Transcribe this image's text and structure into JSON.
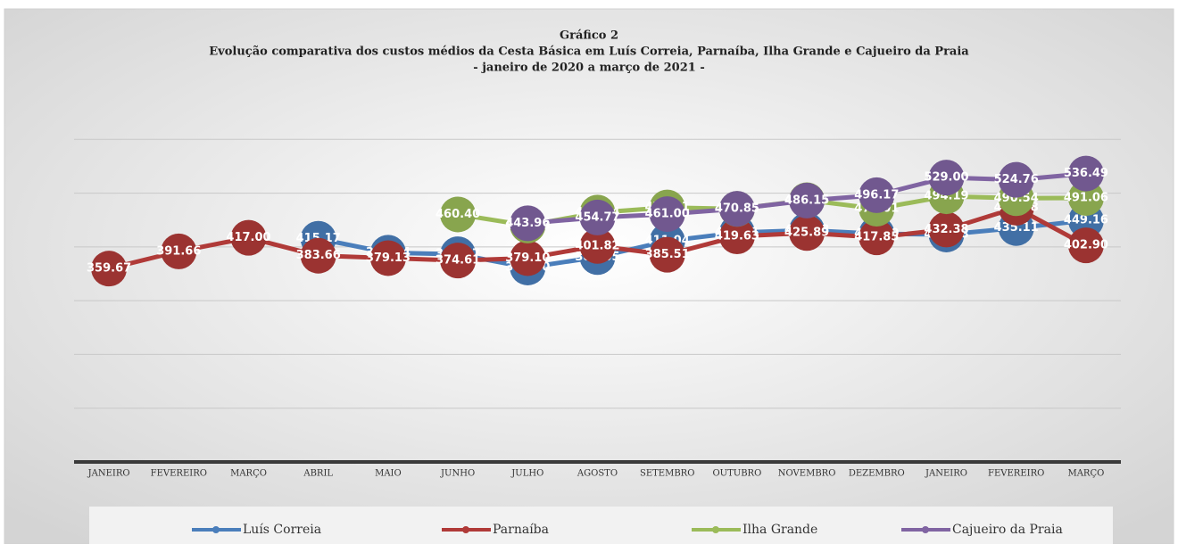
{
  "chart_data": {
    "type": "line",
    "title": "Gráfico 2",
    "subtitle": "Evolução comparativa dos custos médios da Cesta Básica em Luís Correia, Parnaíba, Ilha Grande e Cajueiro da Praia",
    "period": "- janeiro de 2020 a março de 2021 -",
    "categories": [
      "JANEIRO",
      "FEVEREIRO",
      "MARÇO",
      "ABRIL",
      "MAIO",
      "JUNHO",
      "JULHO",
      "AGOSTO",
      "SETEMBRO",
      "OUTUBRO",
      "NOVEMBRO",
      "DEZEMBRO",
      "JANEIRO",
      "FEVEREIRO",
      "MARÇO"
    ],
    "series": [
      {
        "name": "Luís Correia",
        "color": "#4a7ebb",
        "values": [
          null,
          null,
          null,
          415.17,
          389.14,
          386.27,
          361.7,
          381.05,
          411.04,
          426.61,
          431.08,
          424.5,
          423.08,
          435.11,
          449.16
        ],
        "value_labels": [
          null,
          null,
          null,
          "415.17",
          "389.14",
          "386.27",
          "361.70",
          "381.05",
          "411.04",
          "426.61",
          "431.08",
          "424.50",
          "423.08",
          "435.11",
          "449.16"
        ]
      },
      {
        "name": "Parnaíba",
        "color": "#b03a38",
        "values": [
          359.67,
          391.66,
          417.0,
          383.66,
          379.13,
          374.61,
          379.1,
          401.82,
          385.51,
          419.63,
          425.89,
          417.85,
          432.38,
          472.88,
          402.9
        ],
        "value_labels": [
          "359.67",
          "391.66",
          "417.00",
          "383.66",
          "379.13",
          "374.61",
          "379.10",
          "401.82",
          "385.51",
          "419.63",
          "425.89",
          "417.85",
          "432.38",
          "472.88",
          "402.90"
        ]
      },
      {
        "name": "Ilha Grande",
        "color": "#9bbb59",
        "values": [
          null,
          null,
          null,
          null,
          null,
          460.4,
          439.78,
          463.84,
          473.31,
          470.65,
          486.95,
          471.01,
          494.19,
          490.54,
          491.06
        ],
        "value_labels": [
          null,
          null,
          null,
          null,
          null,
          "460.40",
          "439.78",
          "463.84",
          "473.31",
          "470.65",
          "486.95",
          "471.01",
          "494.19",
          "490.54",
          "491.06"
        ]
      },
      {
        "name": "Cajueiro da Praia",
        "color": "#8064a2",
        "values": [
          null,
          null,
          null,
          null,
          null,
          null,
          443.96,
          454.77,
          461.0,
          470.85,
          486.15,
          496.17,
          529.0,
          524.76,
          536.49
        ],
        "value_labels": [
          null,
          null,
          null,
          null,
          null,
          null,
          "443.96",
          "454.77",
          "461.00",
          "470.85",
          "486.15",
          "496.17",
          "529.00",
          "524.76",
          "536.49"
        ]
      }
    ],
    "ylim": [
      0,
      700
    ],
    "yticks": [
      0,
      100,
      200,
      300,
      400,
      500,
      600
    ],
    "grid": true,
    "legend": "bottom"
  }
}
